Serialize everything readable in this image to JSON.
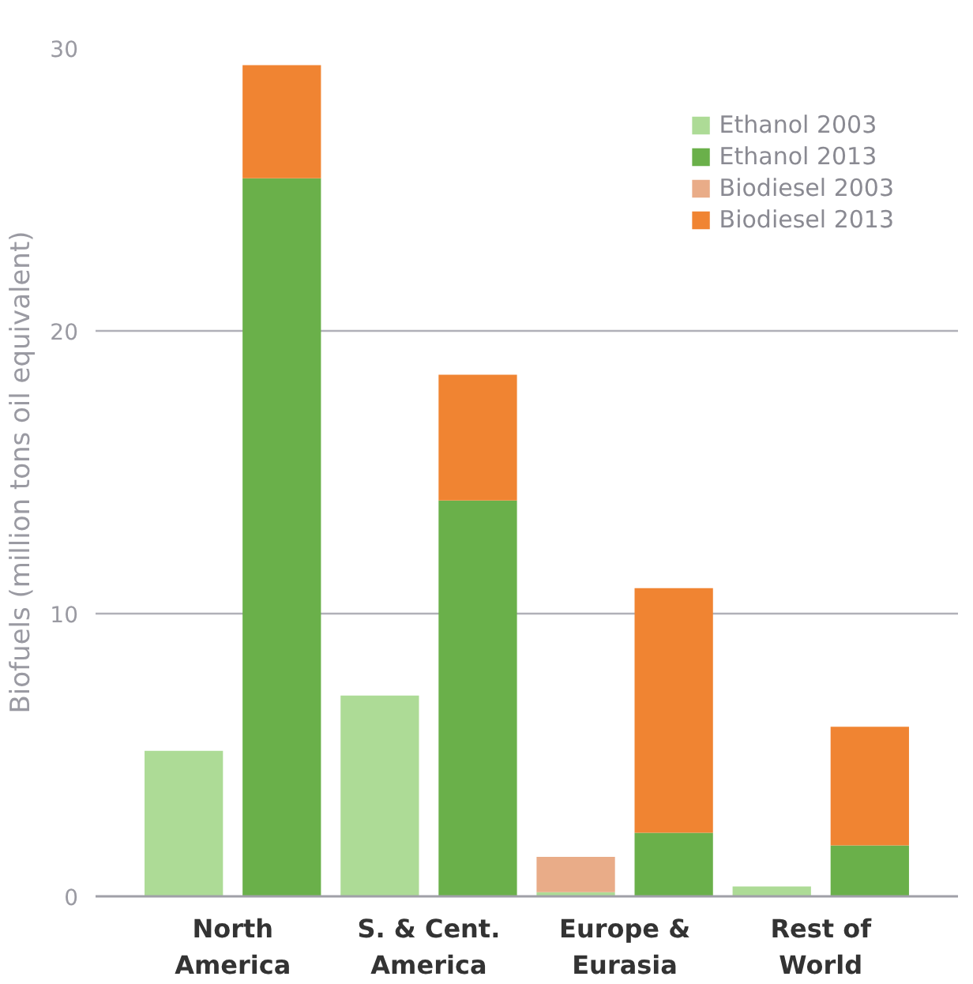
{
  "chart_data": {
    "type": "bar",
    "ylabel": "Biofuels (million tons oil equivalent)",
    "stacked": true,
    "categories": [
      "North\nAmerica",
      null,
      "S. & Cent.\nAmerica",
      null,
      "Europe &\nEurasia",
      null,
      "Rest of\nWorld",
      null
    ],
    "ylim": [
      0,
      30
    ],
    "yticks": [
      0,
      10,
      20,
      30
    ],
    "grid": "y",
    "legend": "top right",
    "series": [
      {
        "name": "Ethanol 2003",
        "color": "#addb96",
        "values": [
          5.15,
          null,
          7.1,
          null,
          0.15,
          null,
          0.35,
          null
        ]
      },
      {
        "name": "Ethanol 2013",
        "color": "#6ab04a",
        "values": [
          null,
          25.4,
          null,
          14.0,
          null,
          2.25,
          null,
          1.8
        ]
      },
      {
        "name": "Biodiesel 2003",
        "color": "#e9ac88",
        "values": [
          0,
          null,
          0,
          null,
          1.25,
          null,
          0,
          null
        ]
      },
      {
        "name": "Biodiesel 2013",
        "color": "#f08432",
        "values": [
          null,
          4.0,
          null,
          4.45,
          null,
          8.65,
          null,
          4.2
        ]
      }
    ]
  }
}
